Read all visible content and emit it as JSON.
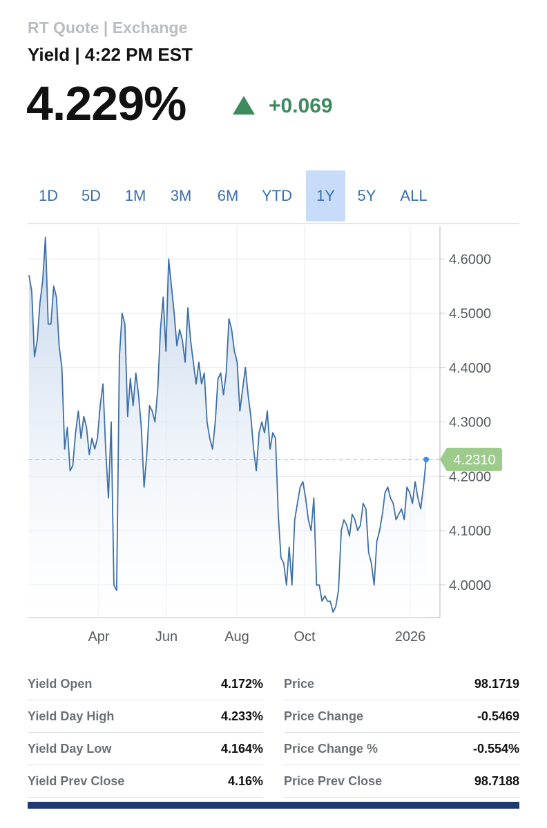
{
  "header": {
    "source": "RT Quote | Exchange",
    "subtitle": "Yield | 4:22 PM EST",
    "value": "4.229%",
    "change": "+0.069",
    "change_direction": "up",
    "up_color": "#3c8a5e"
  },
  "tabs": [
    {
      "label": "1D"
    },
    {
      "label": "5D"
    },
    {
      "label": "1M"
    },
    {
      "label": "3M"
    },
    {
      "label": "6M"
    },
    {
      "label": "YTD"
    },
    {
      "label": "1Y",
      "active": true
    },
    {
      "label": "5Y"
    },
    {
      "label": "ALL"
    }
  ],
  "chart_data": {
    "type": "area",
    "x_tick_labels": [
      "Apr",
      "Jun",
      "Aug",
      "Oct",
      "2026"
    ],
    "y_tick_labels": [
      "4.6000",
      "4.5000",
      "4.4000",
      "4.3000",
      "4.2000",
      "4.1000",
      "4.0000"
    ],
    "ylim": [
      3.94,
      4.66
    ],
    "grid": true,
    "last_value_label": "4.2310",
    "reference_line": 4.231,
    "line_color": "#3d6fa7",
    "marker_color": "#9ccb8c",
    "series": [
      {
        "values": [
          4.57,
          4.54,
          4.42,
          4.45,
          4.52,
          4.56,
          4.64,
          4.48,
          4.48,
          4.55,
          4.53,
          4.44,
          4.4,
          4.25,
          4.29,
          4.21,
          4.22,
          4.28,
          4.32,
          4.27,
          4.31,
          4.29,
          4.24,
          4.27,
          4.25,
          4.27,
          4.33,
          4.37,
          4.25,
          4.16,
          4.3,
          4.0,
          3.99,
          4.42,
          4.5,
          4.48,
          4.31,
          4.38,
          4.33,
          4.39,
          4.35,
          4.29,
          4.18,
          4.24,
          4.33,
          4.32,
          4.3,
          4.36,
          4.47,
          4.53,
          4.43,
          4.6,
          4.55,
          4.5,
          4.44,
          4.47,
          4.45,
          4.41,
          4.51,
          4.45,
          4.41,
          4.37,
          4.41,
          4.37,
          4.39,
          4.3,
          4.27,
          4.25,
          4.3,
          4.38,
          4.39,
          4.35,
          4.39,
          4.49,
          4.47,
          4.43,
          4.41,
          4.32,
          4.36,
          4.4,
          4.35,
          4.31,
          4.25,
          4.21,
          4.28,
          4.3,
          4.28,
          4.32,
          4.25,
          4.28,
          4.27,
          4.13,
          4.05,
          4.04,
          4.0,
          4.07,
          4.0,
          4.12,
          4.15,
          4.18,
          4.19,
          4.16,
          4.12,
          4.1,
          4.16,
          4.0,
          4.0,
          3.97,
          3.98,
          3.97,
          3.97,
          3.95,
          3.96,
          3.99,
          4.1,
          4.12,
          4.11,
          4.09,
          4.13,
          4.12,
          4.1,
          4.11,
          4.15,
          4.14,
          4.06,
          4.04,
          4.0,
          4.08,
          4.1,
          4.13,
          4.17,
          4.18,
          4.16,
          4.15,
          4.12,
          4.13,
          4.14,
          4.12,
          4.18,
          4.17,
          4.15,
          4.19,
          4.16,
          4.14,
          4.18,
          4.231
        ]
      }
    ]
  },
  "stats": {
    "left": [
      {
        "label": "Yield Open",
        "value": "4.172%"
      },
      {
        "label": "Yield Day High",
        "value": "4.233%"
      },
      {
        "label": "Yield Day Low",
        "value": "4.164%"
      },
      {
        "label": "Yield Prev Close",
        "value": "4.16%"
      }
    ],
    "right": [
      {
        "label": "Price",
        "value": "98.1719"
      },
      {
        "label": "Price Change",
        "value": "-0.5469"
      },
      {
        "label": "Price Change %",
        "value": "-0.554%"
      },
      {
        "label": "Price Prev Close",
        "value": "98.7188"
      }
    ]
  }
}
